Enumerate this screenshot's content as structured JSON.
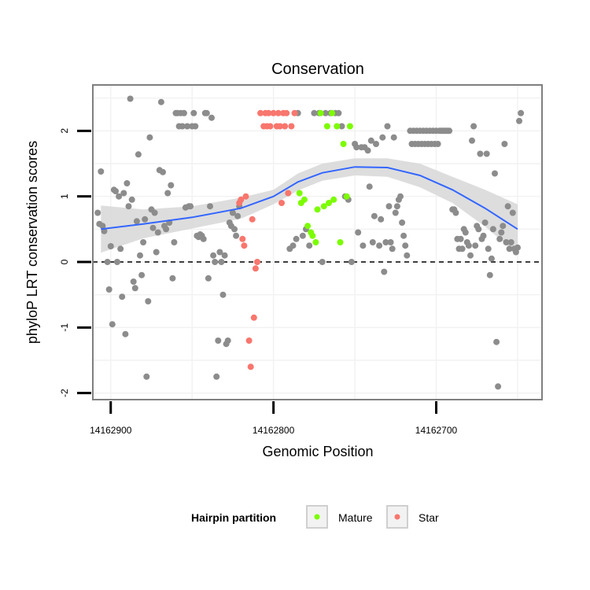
{
  "chart_data": {
    "type": "scatter",
    "title": "Conservation",
    "xlabel": "Genomic Position",
    "ylabel": "phyloP LRT conservation scores",
    "x_reversed": true,
    "xlim": [
      14162911,
      14162635
    ],
    "ylim": [
      -2.1,
      2.7
    ],
    "x_ticks": [
      14162900,
      14162800,
      14162700
    ],
    "x_tick_labels": [
      "14162900",
      "14162800",
      "14162700"
    ],
    "y_ticks": [
      -2,
      -1,
      0,
      1,
      2
    ],
    "y_tick_labels": [
      "-2",
      "-1",
      "0",
      "1",
      "2"
    ],
    "grid": true,
    "reference_line": {
      "y": 0,
      "style": "dashed"
    },
    "legend": {
      "title": "Hairpin partition",
      "position": "bottom",
      "entries": [
        {
          "label": "Mature",
          "color": "#7cfc00"
        },
        {
          "label": "Star",
          "color": "#f8766d"
        }
      ]
    },
    "colors": {
      "other": "#8c8c8c",
      "Mature": "#7cfc00",
      "Star": "#f8766d",
      "smooth_line": "#3366ff",
      "smooth_band": "#d9d9d9",
      "panel_border": "#7f7f7f",
      "grid": "#f2f2f2"
    },
    "series": [
      {
        "group": "other",
        "points": [
          [
            14162908,
            0.75
          ],
          [
            14162907,
            0.58
          ],
          [
            14162906,
            1.38
          ],
          [
            14162905,
            0.55
          ],
          [
            14162904,
            0.47
          ],
          [
            14162902,
            0.0
          ],
          [
            14162901,
            -0.42
          ],
          [
            14162900,
            0.24
          ],
          [
            14162899,
            -0.95
          ],
          [
            14162898,
            1.1
          ],
          [
            14162897,
            1.08
          ],
          [
            14162896,
            0.0
          ],
          [
            14162895,
            1.0
          ],
          [
            14162894,
            0.2
          ],
          [
            14162893,
            -0.53
          ],
          [
            14162892,
            1.05
          ],
          [
            14162891,
            -1.1
          ],
          [
            14162890,
            1.2
          ],
          [
            14162889,
            0.85
          ],
          [
            14162888,
            2.49
          ],
          [
            14162887,
            0.95
          ],
          [
            14162886,
            -0.3
          ],
          [
            14162885,
            -0.4
          ],
          [
            14162884,
            0.62
          ],
          [
            14162883,
            1.64
          ],
          [
            14162882,
            0.1
          ],
          [
            14162881,
            -0.2
          ],
          [
            14162880,
            0.3
          ],
          [
            14162879,
            0.65
          ],
          [
            14162878,
            -1.75
          ],
          [
            14162877,
            -0.6
          ],
          [
            14162876,
            1.9
          ],
          [
            14162875,
            0.8
          ],
          [
            14162874,
            0.52
          ],
          [
            14162873,
            0.75
          ],
          [
            14162872,
            0.15
          ],
          [
            14162871,
            0.45
          ],
          [
            14162870,
            1.4
          ],
          [
            14162869,
            2.44
          ],
          [
            14162868,
            1.37
          ],
          [
            14162867,
            0.55
          ],
          [
            14162866,
            0.5
          ],
          [
            14162865,
            1.05
          ],
          [
            14162864,
            0.6
          ],
          [
            14162863,
            1.17
          ],
          [
            14162862,
            -0.25
          ],
          [
            14162861,
            0.3
          ],
          [
            14162860,
            2.27
          ],
          [
            14162859,
            2.27
          ],
          [
            14162858,
            2.07
          ],
          [
            14162857,
            2.27
          ],
          [
            14162856,
            2.07
          ],
          [
            14162855,
            2.27
          ],
          [
            14162854,
            0.83
          ],
          [
            14162853,
            2.07
          ],
          [
            14162852,
            0.85
          ],
          [
            14162851,
            0.85
          ],
          [
            14162850,
            2.07
          ],
          [
            14162849,
            2.27
          ],
          [
            14162848,
            2.07
          ],
          [
            14162847,
            0.4
          ],
          [
            14162846,
            0.38
          ],
          [
            14162845,
            0.42
          ],
          [
            14162844,
            0.4
          ],
          [
            14162843,
            0.35
          ],
          [
            14162842,
            2.27
          ],
          [
            14162841,
            2.27
          ],
          [
            14162840,
            -0.25
          ],
          [
            14162839,
            0.85
          ],
          [
            14162838,
            2.2
          ],
          [
            14162837,
            0.1
          ],
          [
            14162836,
            0.0
          ],
          [
            14162835,
            -1.75
          ],
          [
            14162834,
            -1.2
          ],
          [
            14162833,
            0.15
          ],
          [
            14162832,
            0.0
          ],
          [
            14162831,
            -0.5
          ],
          [
            14162830,
            0.1
          ],
          [
            14162829,
            -1.25
          ],
          [
            14162828,
            -1.2
          ],
          [
            14162827,
            0.6
          ],
          [
            14162826,
            0.55
          ],
          [
            14162825,
            0.75
          ],
          [
            14162824,
            0.5
          ],
          [
            14162823,
            0.4
          ],
          [
            14162822,
            0.7
          ],
          [
            14162821,
            0.85
          ],
          [
            14162790,
            0.2
          ],
          [
            14162788,
            0.25
          ],
          [
            14162786,
            0.35
          ],
          [
            14162785,
            2.27
          ],
          [
            14162782,
            0.4
          ],
          [
            14162780,
            0.5
          ],
          [
            14162778,
            0.25
          ],
          [
            14162775,
            2.27
          ],
          [
            14162772,
            2.27
          ],
          [
            14162770,
            0.0
          ],
          [
            14162768,
            2.27
          ],
          [
            14162765,
            2.27
          ],
          [
            14162762,
            2.27
          ],
          [
            14162760,
            2.27
          ],
          [
            14162758,
            2.07
          ],
          [
            14162756,
            1.0
          ],
          [
            14162754,
            0.95
          ],
          [
            14162752,
            0.0
          ],
          [
            14162750,
            1.8
          ],
          [
            14162749,
            1.75
          ],
          [
            14162748,
            0.45
          ],
          [
            14162746,
            1.75
          ],
          [
            14162745,
            0.25
          ],
          [
            14162744,
            1.75
          ],
          [
            14162742,
            1.7
          ],
          [
            14162741,
            1.15
          ],
          [
            14162740,
            1.85
          ],
          [
            14162739,
            0.3
          ],
          [
            14162738,
            0.7
          ],
          [
            14162737,
            1.8
          ],
          [
            14162735,
            0.25
          ],
          [
            14162734,
            0.65
          ],
          [
            14162733,
            1.9
          ],
          [
            14162732,
            -0.15
          ],
          [
            14162731,
            0.3
          ],
          [
            14162730,
            2.07
          ],
          [
            14162729,
            0.85
          ],
          [
            14162728,
            0.3
          ],
          [
            14162727,
            0.2
          ],
          [
            14162726,
            1.9
          ],
          [
            14162725,
            0.75
          ],
          [
            14162724,
            0.85
          ],
          [
            14162723,
            0.95
          ],
          [
            14162722,
            1.0
          ],
          [
            14162721,
            0.6
          ],
          [
            14162720,
            0.4
          ],
          [
            14162719,
            0.25
          ],
          [
            14162718,
            0.1
          ],
          [
            14162716,
            2.0
          ],
          [
            14162715,
            1.8
          ],
          [
            14162714,
            2.0
          ],
          [
            14162713,
            1.8
          ],
          [
            14162712,
            2.0
          ],
          [
            14162711,
            1.8
          ],
          [
            14162710,
            2.0
          ],
          [
            14162709,
            1.8
          ],
          [
            14162708,
            2.0
          ],
          [
            14162707,
            1.8
          ],
          [
            14162706,
            2.0
          ],
          [
            14162705,
            1.8
          ],
          [
            14162704,
            2.0
          ],
          [
            14162703,
            1.8
          ],
          [
            14162702,
            2.0
          ],
          [
            14162701,
            1.8
          ],
          [
            14162700,
            2.0
          ],
          [
            14162699,
            1.8
          ],
          [
            14162698,
            2.0
          ],
          [
            14162697,
            2.0
          ],
          [
            14162696,
            2.0
          ],
          [
            14162695,
            2.0
          ],
          [
            14162694,
            2.0
          ],
          [
            14162693,
            2.0
          ],
          [
            14162692,
            2.0
          ],
          [
            14162690,
            0.8
          ],
          [
            14162689,
            0.8
          ],
          [
            14162688,
            0.75
          ],
          [
            14162687,
            0.35
          ],
          [
            14162686,
            0.2
          ],
          [
            14162685,
            0.35
          ],
          [
            14162684,
            0.2
          ],
          [
            14162683,
            0.5
          ],
          [
            14162682,
            0.45
          ],
          [
            14162681,
            0.3
          ],
          [
            14162680,
            0.25
          ],
          [
            14162679,
            0.1
          ],
          [
            14162678,
            1.85
          ],
          [
            14162677,
            2.07
          ],
          [
            14162676,
            0.25
          ],
          [
            14162675,
            0.55
          ],
          [
            14162674,
            0.5
          ],
          [
            14162673,
            1.65
          ],
          [
            14162672,
            0.35
          ],
          [
            14162671,
            0.4
          ],
          [
            14162670,
            0.6
          ],
          [
            14162669,
            1.65
          ],
          [
            14162668,
            0.2
          ],
          [
            14162667,
            -0.2
          ],
          [
            14162666,
            0.05
          ],
          [
            14162665,
            0.5
          ],
          [
            14162664,
            1.35
          ],
          [
            14162663,
            -1.22
          ],
          [
            14162662,
            -1.9
          ],
          [
            14162661,
            0.35
          ],
          [
            14162660,
            0.45
          ],
          [
            14162659,
            0.55
          ],
          [
            14162658,
            1.8
          ],
          [
            14162657,
            0.3
          ],
          [
            14162656,
            0.85
          ],
          [
            14162655,
            0.2
          ],
          [
            14162654,
            0.3
          ],
          [
            14162653,
            0.75
          ],
          [
            14162652,
            0.2
          ],
          [
            14162651,
            0.15
          ],
          [
            14162650,
            0.22
          ],
          [
            14162649,
            2.15
          ],
          [
            14162648,
            2.27
          ]
        ]
      },
      {
        "group": "Star",
        "points": [
          [
            14162821,
            0.9
          ],
          [
            14162820,
            0.95
          ],
          [
            14162819,
            0.35
          ],
          [
            14162818,
            0.25
          ],
          [
            14162817,
            1.0
          ],
          [
            14162815,
            -1.2
          ],
          [
            14162814,
            -1.6
          ],
          [
            14162813,
            0.65
          ],
          [
            14162812,
            -0.85
          ],
          [
            14162811,
            -0.1
          ],
          [
            14162810,
            0.0
          ],
          [
            14162808,
            2.27
          ],
          [
            14162806,
            2.07
          ],
          [
            14162805,
            2.27
          ],
          [
            14162804,
            2.07
          ],
          [
            14162803,
            2.27
          ],
          [
            14162802,
            2.07
          ],
          [
            14162800,
            2.27
          ],
          [
            14162798,
            2.07
          ],
          [
            14162797,
            2.27
          ],
          [
            14162796,
            2.07
          ],
          [
            14162795,
            0.9
          ],
          [
            14162794,
            2.27
          ],
          [
            14162793,
            2.07
          ],
          [
            14162792,
            2.27
          ],
          [
            14162791,
            1.05
          ],
          [
            14162789,
            2.07
          ],
          [
            14162787,
            2.27
          ]
        ]
      },
      {
        "group": "Mature",
        "points": [
          [
            14162784,
            1.05
          ],
          [
            14162783,
            0.9
          ],
          [
            14162781,
            0.95
          ],
          [
            14162779,
            0.55
          ],
          [
            14162777,
            0.45
          ],
          [
            14162776,
            0.4
          ],
          [
            14162774,
            0.3
          ],
          [
            14162773,
            0.8
          ],
          [
            14162771,
            2.27
          ],
          [
            14162769,
            0.85
          ],
          [
            14162767,
            2.07
          ],
          [
            14162766,
            0.9
          ],
          [
            14162764,
            2.27
          ],
          [
            14162763,
            0.95
          ],
          [
            14162761,
            2.07
          ],
          [
            14162759,
            0.3
          ],
          [
            14162757,
            1.8
          ],
          [
            14162755,
            1.0
          ],
          [
            14162753,
            2.07
          ]
        ]
      }
    ],
    "smooth": {
      "method": "loess",
      "x": [
        14162906,
        14162880,
        14162850,
        14162820,
        14162800,
        14162785,
        14162770,
        14162750,
        14162730,
        14162710,
        14162690,
        14162670,
        14162650
      ],
      "y": [
        0.5,
        0.58,
        0.68,
        0.82,
        1.0,
        1.22,
        1.36,
        1.45,
        1.44,
        1.32,
        1.1,
        0.82,
        0.5
      ],
      "upper": [
        0.86,
        0.8,
        0.85,
        0.98,
        1.1,
        1.35,
        1.5,
        1.58,
        1.58,
        1.5,
        1.3,
        1.1,
        0.88
      ],
      "lower": [
        0.14,
        0.36,
        0.51,
        0.66,
        0.88,
        1.09,
        1.24,
        1.32,
        1.3,
        1.14,
        0.9,
        0.54,
        0.12
      ]
    }
  }
}
